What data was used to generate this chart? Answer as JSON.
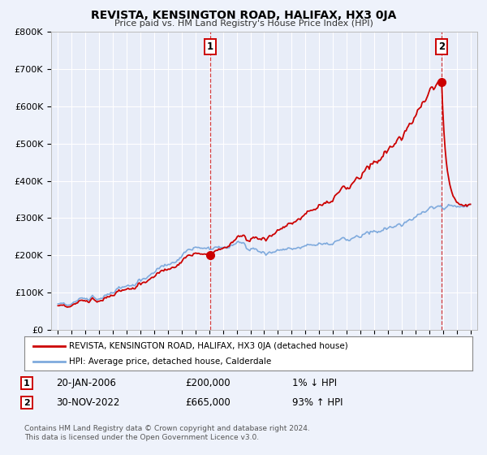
{
  "title": "REVISTA, KENSINGTON ROAD, HALIFAX, HX3 0JA",
  "subtitle": "Price paid vs. HM Land Registry's House Price Index (HPI)",
  "background_color": "#eef2fb",
  "plot_bg_color": "#e8edf8",
  "grid_color": "#ffffff",
  "red_line_color": "#cc0000",
  "blue_line_color": "#7faadd",
  "sale1_date_label": "20-JAN-2006",
  "sale1_price": 200000,
  "sale1_price_label": "£200,000",
  "sale1_hpi_label": "1% ↓ HPI",
  "sale2_date_label": "30-NOV-2022",
  "sale2_price": 665000,
  "sale2_price_label": "£665,000",
  "sale2_hpi_label": "93% ↑ HPI",
  "legend_label1": "REVISTA, KENSINGTON ROAD, HALIFAX, HX3 0JA (detached house)",
  "legend_label2": "HPI: Average price, detached house, Calderdale",
  "footer1": "Contains HM Land Registry data © Crown copyright and database right 2024.",
  "footer2": "This data is licensed under the Open Government Licence v3.0.",
  "sale1_x": 2006.05,
  "sale2_x": 2022.92,
  "ylim": [
    0,
    800000
  ],
  "xlim_start": 1994.5,
  "xlim_end": 2025.5,
  "xticks": [
    1995,
    1996,
    1997,
    1998,
    1999,
    2000,
    2001,
    2002,
    2003,
    2004,
    2005,
    2006,
    2007,
    2008,
    2009,
    2010,
    2011,
    2012,
    2013,
    2014,
    2015,
    2016,
    2017,
    2018,
    2019,
    2020,
    2021,
    2022,
    2023,
    2024,
    2025
  ],
  "yticks": [
    0,
    100000,
    200000,
    300000,
    400000,
    500000,
    600000,
    700000,
    800000
  ]
}
